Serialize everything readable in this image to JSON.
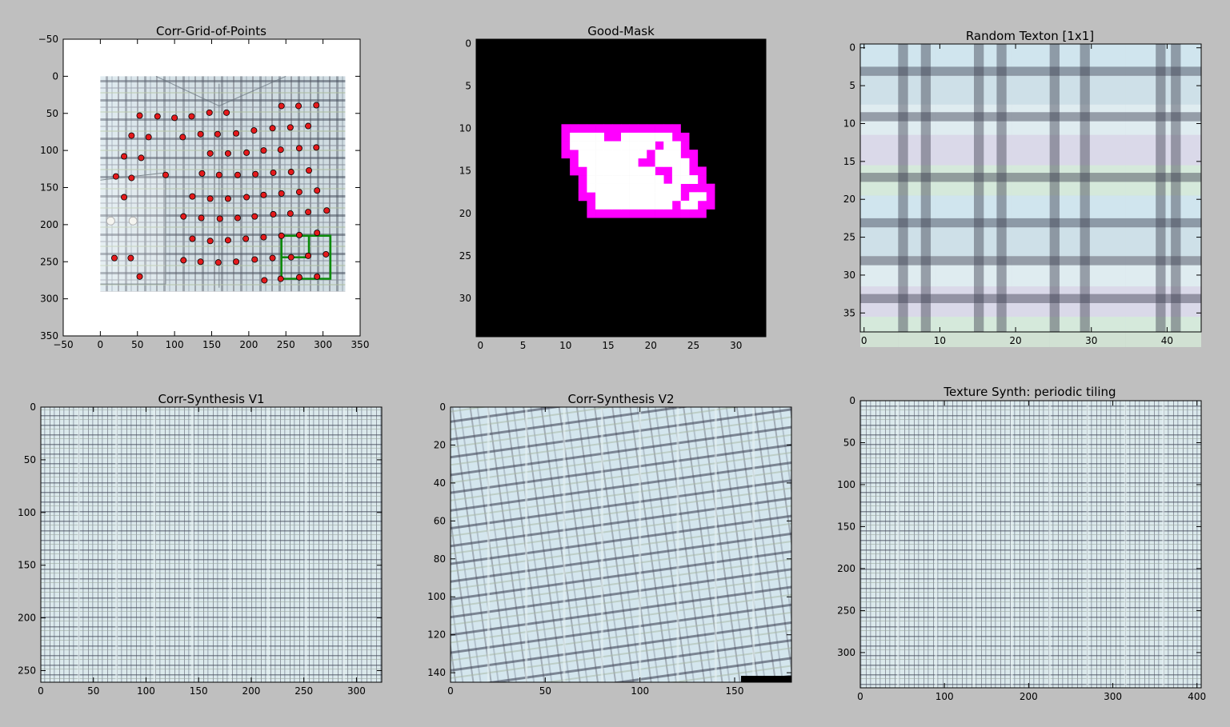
{
  "figure": {
    "background": "#bfbfbf"
  },
  "colors": {
    "grid_point_fill": "#e41a1c",
    "grid_point_edge": "#000000",
    "box_stroke": "#0a8a0a",
    "mask_core": "#ffffff",
    "mask_edge": "#ff00ff",
    "mask_background": "#000000",
    "plaid_base": "#dbe8ee"
  },
  "chart_data": [
    {
      "id": "corr-grid",
      "type": "scatter",
      "title": "Corr-Grid-of-Points",
      "xlim": [
        -50,
        350
      ],
      "ylim": [
        350,
        -50
      ],
      "xticks": [
        -50,
        0,
        50,
        100,
        150,
        200,
        250,
        300,
        350
      ],
      "yticks": [
        -50,
        0,
        50,
        100,
        150,
        200,
        250,
        300,
        350
      ],
      "image_extent": [
        0,
        330,
        0,
        290
      ],
      "points": [
        [
          244,
          40
        ],
        [
          267,
          40
        ],
        [
          291,
          39
        ],
        [
          53,
          53
        ],
        [
          77,
          54
        ],
        [
          100,
          56
        ],
        [
          123,
          54
        ],
        [
          147,
          49
        ],
        [
          170,
          49
        ],
        [
          42,
          80
        ],
        [
          65,
          82
        ],
        [
          111,
          82
        ],
        [
          135,
          78
        ],
        [
          158,
          78
        ],
        [
          183,
          77
        ],
        [
          207,
          73
        ],
        [
          232,
          70
        ],
        [
          256,
          69
        ],
        [
          280,
          67
        ],
        [
          32,
          108
        ],
        [
          55,
          110
        ],
        [
          148,
          104
        ],
        [
          172,
          104
        ],
        [
          197,
          103
        ],
        [
          220,
          100
        ],
        [
          243,
          99
        ],
        [
          268,
          97
        ],
        [
          291,
          96
        ],
        [
          21,
          135
        ],
        [
          42,
          137
        ],
        [
          88,
          133
        ],
        [
          137,
          131
        ],
        [
          160,
          133
        ],
        [
          185,
          133
        ],
        [
          209,
          132
        ],
        [
          233,
          130
        ],
        [
          257,
          129
        ],
        [
          281,
          127
        ],
        [
          32,
          163
        ],
        [
          124,
          162
        ],
        [
          148,
          165
        ],
        [
          172,
          165
        ],
        [
          197,
          163
        ],
        [
          220,
          160
        ],
        [
          244,
          158
        ],
        [
          268,
          156
        ],
        [
          292,
          154
        ],
        [
          112,
          189
        ],
        [
          136,
          191
        ],
        [
          161,
          192
        ],
        [
          185,
          191
        ],
        [
          208,
          189
        ],
        [
          233,
          186
        ],
        [
          256,
          185
        ],
        [
          280,
          183
        ],
        [
          305,
          181
        ],
        [
          124,
          219
        ],
        [
          148,
          222
        ],
        [
          172,
          221
        ],
        [
          196,
          219
        ],
        [
          220,
          217
        ],
        [
          244,
          215
        ],
        [
          268,
          214
        ],
        [
          292,
          211
        ],
        [
          19,
          245
        ],
        [
          41,
          245
        ],
        [
          112,
          248
        ],
        [
          135,
          250
        ],
        [
          159,
          251
        ],
        [
          183,
          250
        ],
        [
          208,
          247
        ],
        [
          232,
          245
        ],
        [
          257,
          244
        ],
        [
          280,
          242
        ],
        [
          304,
          240
        ],
        [
          53,
          270
        ],
        [
          221,
          275
        ],
        [
          243,
          273
        ],
        [
          268,
          271
        ],
        [
          292,
          270
        ]
      ],
      "boxes": [
        [
          244,
          215,
          310,
          273
        ],
        [
          244,
          215,
          281,
          244
        ]
      ]
    },
    {
      "id": "good-mask",
      "type": "heatmap",
      "title": "Good-Mask",
      "width": 34,
      "height": 35,
      "xticks": [
        0,
        5,
        10,
        15,
        20,
        25,
        30
      ],
      "yticks": [
        0,
        5,
        10,
        15,
        20,
        25,
        30
      ],
      "core_rows": [
        [
          11,
          [
            [
              11,
              14
            ],
            [
              17,
              22
            ]
          ]
        ],
        [
          12,
          [
            [
              11,
              20
            ],
            [
              22,
              23
            ]
          ]
        ],
        [
          13,
          [
            [
              12,
              19
            ],
            [
              21,
              23
            ]
          ]
        ],
        [
          14,
          [
            [
              12,
              18
            ],
            [
              21,
              24
            ]
          ]
        ],
        [
          15,
          [
            [
              13,
              20
            ],
            [
              23,
              24
            ]
          ]
        ],
        [
          16,
          [
            [
              13,
              21
            ],
            [
              23,
              25
            ]
          ]
        ],
        [
          17,
          [
            [
              13,
              23
            ]
          ]
        ],
        [
          18,
          [
            [
              14,
              23
            ],
            [
              25,
              26
            ]
          ]
        ],
        [
          19,
          [
            [
              14,
              22
            ],
            [
              24,
              25
            ]
          ]
        ]
      ]
    },
    {
      "id": "random-texton",
      "type": "heatmap",
      "title": "Random Texton [1x1]",
      "width": 45,
      "height": 38,
      "xticks": [
        0,
        10,
        20,
        30,
        40
      ],
      "yticks": [
        0,
        5,
        10,
        15,
        20,
        25,
        30,
        35
      ],
      "dark_columns": [
        5,
        8,
        15,
        18,
        25,
        29,
        39,
        41
      ],
      "dark_rows": [
        3,
        9,
        17,
        23,
        28,
        33
      ]
    },
    {
      "id": "corr-synth-v1",
      "type": "heatmap",
      "title": "Corr-Synthesis V1",
      "width": 324,
      "height": 261,
      "xticks": [
        0,
        50,
        100,
        150,
        200,
        250,
        300
      ],
      "yticks": [
        0,
        50,
        100,
        150,
        200,
        250
      ],
      "tile_width": 36
    },
    {
      "id": "corr-synth-v2",
      "type": "heatmap",
      "title": "Corr-Synthesis V2",
      "width": 180,
      "height": 145,
      "xticks": [
        0,
        50,
        100,
        150
      ],
      "yticks": [
        0,
        20,
        40,
        60,
        80,
        100,
        120,
        140
      ],
      "tile_width": 20
    },
    {
      "id": "periodic-tiling",
      "type": "heatmap",
      "title": "Texture Synth: periodic tiling",
      "width": 405,
      "height": 342,
      "xticks": [
        0,
        100,
        200,
        300,
        400
      ],
      "yticks": [
        0,
        50,
        100,
        150,
        200,
        250,
        300
      ],
      "tile_width": 45
    }
  ]
}
